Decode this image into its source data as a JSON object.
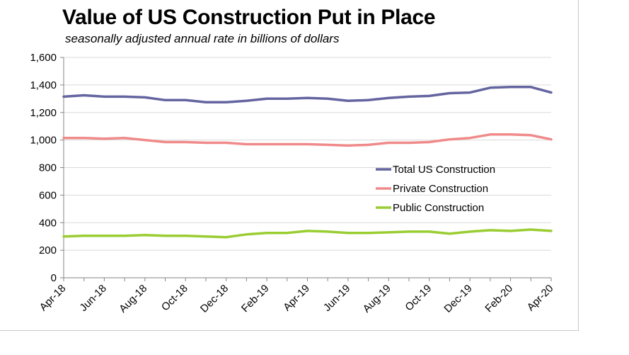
{
  "chart_data": {
    "type": "line",
    "title": "Value of US Construction Put in Place",
    "subtitle": "seasonally adjusted annual rate in billions of dollars",
    "xlabel": "",
    "ylabel": "",
    "ylim": [
      0,
      1600
    ],
    "yticks": [
      0,
      200,
      400,
      600,
      800,
      1000,
      1200,
      1400,
      1600
    ],
    "ytick_labels": [
      "0",
      "200",
      "400",
      "600",
      "800",
      "1,000",
      "1,200",
      "1,400",
      "1,600"
    ],
    "grid": "horizontal",
    "legend": "center-right",
    "categories": [
      "Apr-18",
      "May-18",
      "Jun-18",
      "Jul-18",
      "Aug-18",
      "Sep-18",
      "Oct-18",
      "Nov-18",
      "Dec-18",
      "Jan-19",
      "Feb-19",
      "Mar-19",
      "Apr-19",
      "May-19",
      "Jun-19",
      "Jul-19",
      "Aug-19",
      "Sep-19",
      "Oct-19",
      "Nov-19",
      "Dec-19",
      "Jan-20",
      "Feb-20",
      "Mar-20",
      "Apr-20"
    ],
    "xtick_labels": [
      "Apr-18",
      "Jun-18",
      "Aug-18",
      "Oct-18",
      "Dec-18",
      "Feb-19",
      "Apr-19",
      "Jun-19",
      "Aug-19",
      "Oct-19",
      "Dec-19",
      "Feb-20",
      "Apr-20"
    ],
    "series": [
      {
        "name": "Total US Construction",
        "color": "#6464a0",
        "values": [
          1315,
          1325,
          1315,
          1315,
          1310,
          1290,
          1290,
          1275,
          1275,
          1285,
          1300,
          1300,
          1305,
          1300,
          1285,
          1290,
          1305,
          1315,
          1320,
          1340,
          1345,
          1380,
          1385,
          1385,
          1345
        ]
      },
      {
        "name": "Private Construction",
        "color": "#f08a8a",
        "values": [
          1015,
          1015,
          1010,
          1015,
          1000,
          985,
          985,
          980,
          980,
          970,
          970,
          970,
          970,
          965,
          960,
          965,
          980,
          980,
          985,
          1005,
          1015,
          1040,
          1040,
          1035,
          1005
        ]
      },
      {
        "name": "Public Construction",
        "color": "#9acd32",
        "values": [
          300,
          305,
          305,
          305,
          310,
          305,
          305,
          300,
          295,
          315,
          325,
          325,
          340,
          335,
          325,
          325,
          330,
          335,
          335,
          320,
          335,
          345,
          340,
          350,
          340
        ]
      }
    ]
  }
}
